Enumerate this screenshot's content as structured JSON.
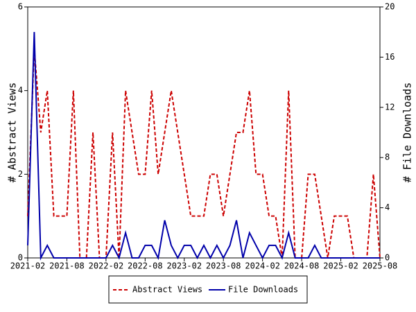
{
  "chart_data": {
    "type": "line",
    "y_label": "# Abstract Views",
    "y2_label": "# File Downloads",
    "categories": [
      "2021-02",
      null,
      null,
      null,
      null,
      null,
      "2021-08",
      null,
      null,
      null,
      null,
      null,
      "2022-02",
      null,
      null,
      null,
      null,
      null,
      "2022-08",
      null,
      null,
      null,
      null,
      null,
      "2023-02",
      null,
      null,
      null,
      null,
      null,
      "2023-08",
      null,
      null,
      null,
      null,
      null,
      "2024-02",
      null,
      null,
      null,
      null,
      null,
      "2024-08",
      null,
      null,
      null,
      null,
      null,
      "2025-02",
      null,
      null,
      null,
      null,
      null,
      "2025-08"
    ],
    "ylim": [
      0,
      6
    ],
    "yticks": [
      0,
      2,
      4,
      6
    ],
    "y2lim": [
      0,
      20
    ],
    "y2ticks": [
      0,
      4,
      8,
      12,
      16,
      20
    ],
    "series": [
      {
        "name": "Abstract Views",
        "color": "#cc0000",
        "dashed": true,
        "values": [
          1,
          5,
          3,
          4,
          1,
          1,
          1,
          4,
          0,
          0,
          3,
          0,
          0,
          3,
          0,
          4,
          3,
          2,
          2,
          4,
          2,
          3,
          4,
          3,
          2,
          1,
          1,
          1,
          2,
          2,
          1,
          2,
          3,
          3,
          4,
          2,
          2,
          1,
          1,
          0,
          4,
          0,
          0,
          2,
          2,
          1,
          0,
          1,
          1,
          1,
          0,
          0,
          0,
          2,
          0
        ]
      },
      {
        "name": "File Downloads",
        "color": "#0000aa",
        "dashed": false,
        "axis": "y2",
        "values": [
          1,
          18,
          0,
          1,
          0,
          0,
          0,
          0,
          0,
          0,
          0,
          0,
          0,
          1,
          0,
          2,
          0,
          0,
          1,
          1,
          0,
          3,
          1,
          0,
          1,
          1,
          0,
          1,
          0,
          1,
          0,
          1,
          3,
          0,
          2,
          1,
          0,
          1,
          1,
          0,
          2,
          0,
          0,
          0,
          1,
          0,
          0,
          0,
          0,
          0,
          0,
          0,
          0,
          0,
          0
        ]
      }
    ]
  }
}
